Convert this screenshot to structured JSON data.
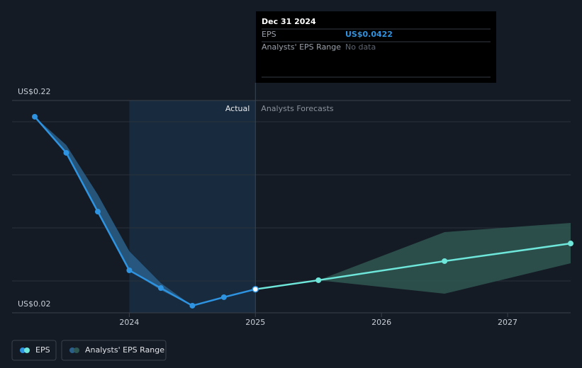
{
  "chart_data": {
    "type": "line",
    "x": [
      2023.25,
      2023.5,
      2023.75,
      2024,
      2024.25,
      2024.5,
      2024.75,
      2025,
      2025.5,
      2026.5,
      2027.5
    ],
    "xlim": [
      2023.07,
      2027.5
    ],
    "xticks": [
      2024,
      2025,
      2026,
      2027
    ],
    "ylim": [
      0.02,
      0.22
    ],
    "yticks": [
      {
        "value": 0.02,
        "label": "US$0.02"
      },
      {
        "value": 0.22,
        "label": "US$0.22"
      }
    ],
    "ygrid": [
      0.05,
      0.1,
      0.15,
      0.2
    ],
    "highlight": [
      2024,
      2025
    ],
    "actual_label": "Actual",
    "forecast_label": "Analysts Forecasts",
    "series": [
      {
        "name": "EPS",
        "color": "#2e93e0",
        "forecast_color": "#6ee6d9",
        "values": [
          0.2047,
          0.1707,
          0.1153,
          0.06,
          0.0433,
          0.0267,
          0.0347,
          0.0422,
          0.0507,
          0.0687,
          0.0853
        ]
      },
      {
        "name": "Analysts' EPS Range",
        "color": "#2a5f8a",
        "forecast_color": "#2f5752",
        "high": [
          0.2047,
          0.178,
          0.1313,
          0.078,
          0.048,
          0.0267,
          null,
          null,
          0.0507,
          0.096,
          0.1047
        ],
        "low": [
          0.2047,
          0.1707,
          0.1153,
          0.06,
          0.0413,
          0.0267,
          null,
          null,
          0.0507,
          0.038,
          0.0667
        ]
      }
    ],
    "tooltip": {
      "date": "Dec 31 2024",
      "rows": [
        {
          "label": "EPS",
          "value": "US$0.0422"
        },
        {
          "label": "Analysts' EPS Range",
          "value": "No data"
        }
      ]
    }
  }
}
